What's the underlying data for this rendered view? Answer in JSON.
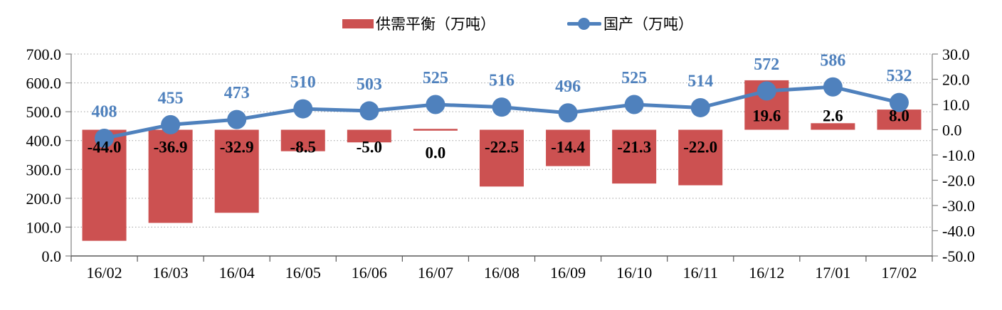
{
  "legend": {
    "items": [
      {
        "label": "供需平衡（万吨）",
        "series": "bar",
        "color": "#CC5151"
      },
      {
        "label": "国产（万吨）",
        "series": "line",
        "color": "#4F81BD"
      }
    ]
  },
  "chart_data": {
    "type": "combo-bar-line",
    "title": "",
    "categories": [
      "16/02",
      "16/03",
      "16/04",
      "16/05",
      "16/06",
      "16/07",
      "16/08",
      "16/09",
      "16/10",
      "16/11",
      "16/12",
      "17/01",
      "17/02"
    ],
    "series": [
      {
        "name": "供需平衡（万吨）",
        "type": "bar",
        "axis": "right",
        "color": "#CC5151",
        "label_color": "#000000",
        "values": [
          -44.0,
          -36.9,
          -32.9,
          -8.5,
          -5.0,
          0.0,
          -22.5,
          -14.4,
          -21.3,
          -22.0,
          19.6,
          2.6,
          8.0
        ]
      },
      {
        "name": "国产（万吨）",
        "type": "line",
        "axis": "left",
        "color": "#4F81BD",
        "label_color": "#4F81BD",
        "values": [
          408,
          455,
          473,
          510,
          503,
          525,
          516,
          496,
          525,
          514,
          572,
          586,
          532
        ]
      }
    ],
    "left_axis": {
      "min": 0,
      "max": 700,
      "step": 100,
      "decimals": 1
    },
    "right_axis": {
      "min": -50,
      "max": 30,
      "step": 10,
      "decimals": 1
    },
    "grid": true,
    "legend_position": "top",
    "colors": {
      "grid": "#A0A0A0",
      "axis_side": "#808080",
      "axis_bottom": "#595959"
    }
  }
}
